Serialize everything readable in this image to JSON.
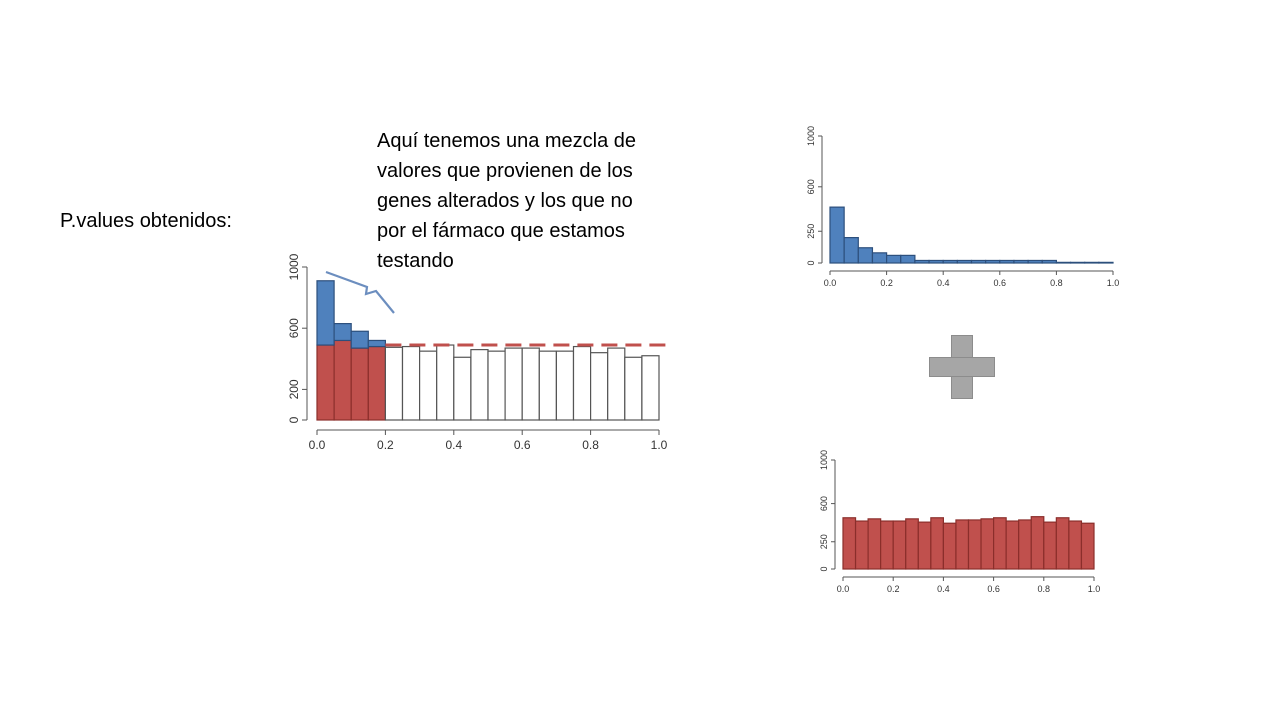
{
  "slide": {
    "label": "P.values obtenidos:",
    "note_lines": [
      "Aquí tenemos una mezcla de",
      "valores que provienen de los",
      "genes alterados y los que no",
      "por el fármaco que estamos",
      "testando"
    ],
    "plus_icon": "plus-icon"
  },
  "colors": {
    "blue": "#4f81bd",
    "red": "#c0504d",
    "dashed_line": "#c0504d",
    "brace": "#6c8ebf",
    "plus": "#a6a6a6"
  },
  "chart_data": [
    {
      "id": "main",
      "type": "bar",
      "x_ticks": [
        "0.0",
        "0.2",
        "0.4",
        "0.6",
        "0.8",
        "1.0"
      ],
      "y_ticks": [
        "0",
        "200",
        "600",
        "1000"
      ],
      "xlim": [
        0,
        1
      ],
      "ylim": [
        0,
        1000
      ],
      "bin_width": 0.05,
      "series": [
        {
          "values": [
            490,
            520,
            470,
            480
          ]
        },
        {
          "values": [
            910,
            630,
            580,
            520
          ]
        },
        {
          "values": [
            475,
            480,
            450,
            490,
            410,
            460,
            450,
            470,
            470,
            450,
            450,
            480,
            440,
            470,
            410,
            420
          ]
        }
      ],
      "reference_line": 490
    },
    {
      "id": "top-right",
      "type": "bar",
      "x_ticks": [
        "0.0",
        "0.2",
        "0.4",
        "0.6",
        "0.8",
        "1.0"
      ],
      "y_ticks": [
        "0",
        "250",
        "600",
        "1000"
      ],
      "xlim": [
        0,
        1
      ],
      "ylim": [
        0,
        1000
      ],
      "bin_width": 0.05,
      "series": [
        {
          "values": [
            440,
            200,
            120,
            80,
            60,
            60,
            20,
            20,
            20,
            20,
            20,
            20,
            20,
            20,
            20,
            20,
            5,
            5,
            5,
            5
          ]
        }
      ]
    },
    {
      "id": "bottom-right",
      "type": "bar",
      "x_ticks": [
        "0.0",
        "0.2",
        "0.4",
        "0.6",
        "0.8",
        "1.0"
      ],
      "y_ticks": [
        "0",
        "250",
        "600",
        "1000"
      ],
      "xlim": [
        0,
        1
      ],
      "ylim": [
        0,
        1000
      ],
      "bin_width": 0.05,
      "series": [
        {
          "values": [
            470,
            440,
            460,
            440,
            440,
            460,
            430,
            470,
            420,
            450,
            450,
            460,
            470,
            440,
            450,
            480,
            430,
            470,
            440,
            420
          ]
        }
      ]
    }
  ]
}
